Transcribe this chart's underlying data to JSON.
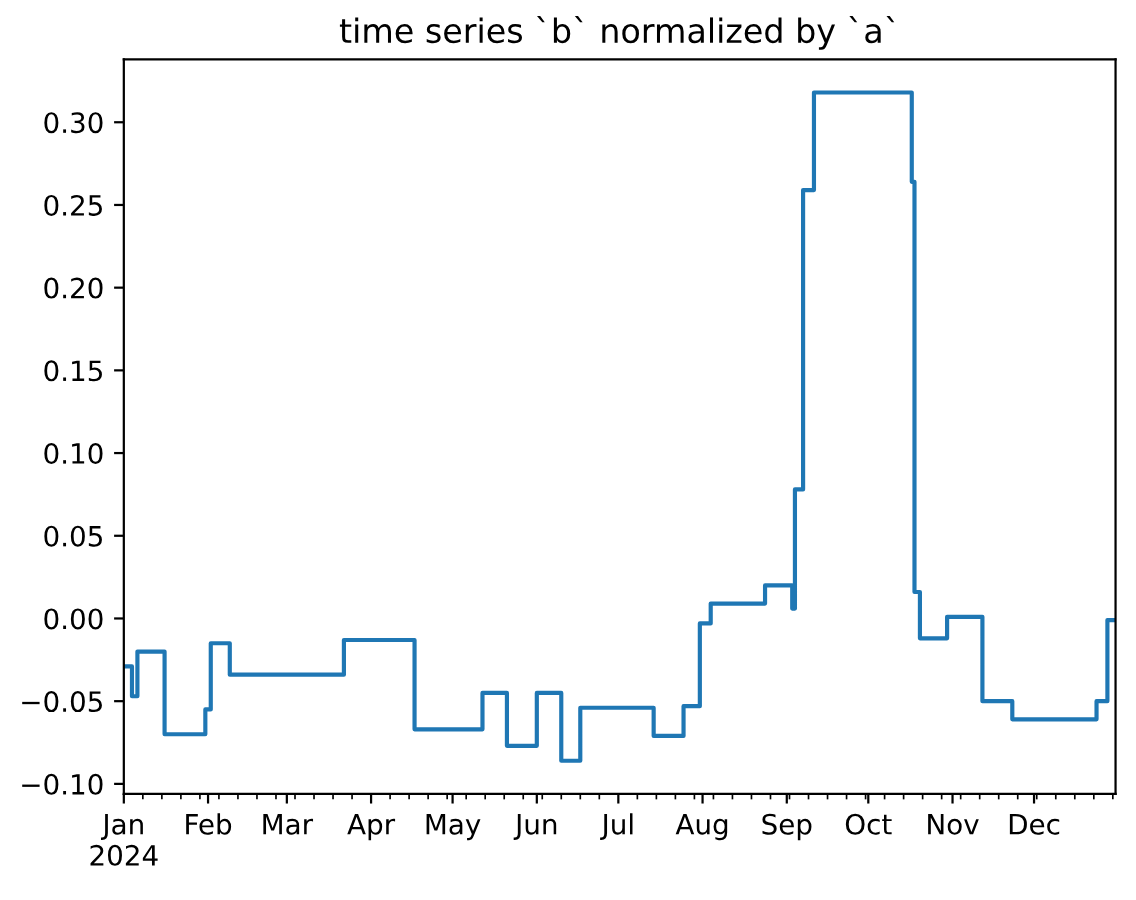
{
  "chart_data": {
    "type": "step",
    "title": "time series `b` normalized by `a`",
    "x": [
      "2024-01-01",
      "2024-01-04",
      "2024-01-06",
      "2024-01-16",
      "2024-01-31",
      "2024-02-02",
      "2024-02-09",
      "2024-03-22",
      "2024-04-17",
      "2024-05-12",
      "2024-05-21",
      "2024-06-01",
      "2024-06-10",
      "2024-06-17",
      "2024-07-14",
      "2024-07-25",
      "2024-07-31",
      "2024-08-04",
      "2024-08-24",
      "2024-09-03",
      "2024-09-04",
      "2024-09-07",
      "2024-09-11",
      "2024-10-17",
      "2024-10-18",
      "2024-10-20",
      "2024-10-30",
      "2024-11-12",
      "2024-11-23",
      "2024-12-24",
      "2024-12-28",
      "2024-12-31"
    ],
    "series": [
      {
        "color": "#1f77b4",
        "values": [
          -0.029,
          -0.047,
          -0.02,
          -0.07,
          -0.055,
          -0.015,
          -0.034,
          -0.013,
          -0.067,
          -0.045,
          -0.077,
          -0.045,
          -0.086,
          -0.054,
          -0.071,
          -0.053,
          -0.003,
          0.009,
          0.02,
          0.006,
          0.078,
          0.259,
          0.318,
          0.264,
          0.016,
          -0.012,
          0.001,
          -0.05,
          -0.061,
          -0.05,
          -0.001,
          -0.001
        ]
      }
    ],
    "xlim": [
      "2024-01-01",
      "2024-12-31"
    ],
    "xticks": [
      {
        "value": "2024-01-01",
        "label": "Jan\n2024"
      },
      {
        "value": "2024-02-01",
        "label": "Feb"
      },
      {
        "value": "2024-03-01",
        "label": "Mar"
      },
      {
        "value": "2024-04-01",
        "label": "Apr"
      },
      {
        "value": "2024-05-01",
        "label": "May"
      },
      {
        "value": "2024-06-01",
        "label": "Jun"
      },
      {
        "value": "2024-07-01",
        "label": "Jul"
      },
      {
        "value": "2024-08-01",
        "label": "Aug"
      },
      {
        "value": "2024-09-01",
        "label": "Sep"
      },
      {
        "value": "2024-10-01",
        "label": "Oct"
      },
      {
        "value": "2024-11-01",
        "label": "Nov"
      },
      {
        "value": "2024-12-01",
        "label": "Dec"
      }
    ],
    "ylim": [
      -0.106,
      0.338
    ],
    "yticks": [
      {
        "value": -0.1,
        "label": "−0.10"
      },
      {
        "value": -0.05,
        "label": "−0.05"
      },
      {
        "value": 0.0,
        "label": "0.00"
      },
      {
        "value": 0.05,
        "label": "0.05"
      },
      {
        "value": 0.1,
        "label": "0.10"
      },
      {
        "value": 0.15,
        "label": "0.15"
      },
      {
        "value": 0.2,
        "label": "0.20"
      },
      {
        "value": 0.25,
        "label": "0.25"
      },
      {
        "value": 0.3,
        "label": "0.30"
      }
    ],
    "grid": false,
    "legend": false
  }
}
